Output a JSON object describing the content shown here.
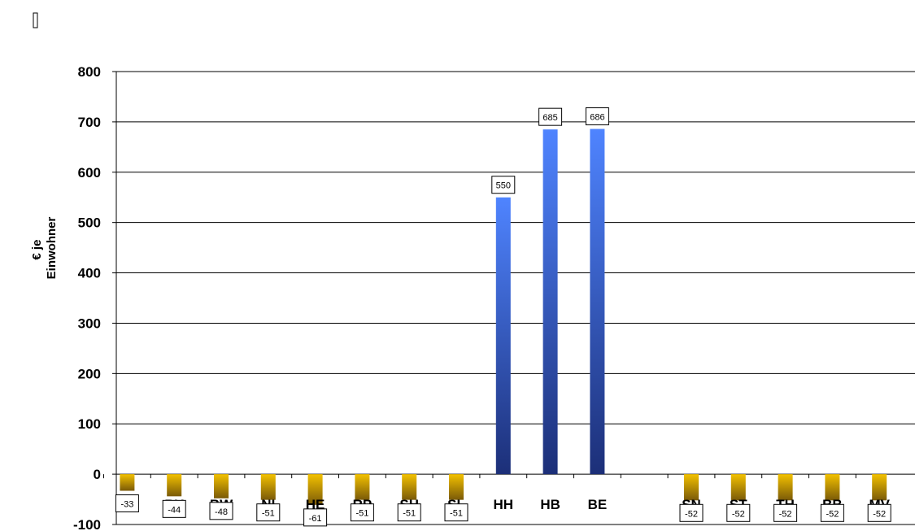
{
  "chart_data": {
    "type": "bar",
    "title": "",
    "ylabel_lines": [
      "€ je",
      "Einwohner"
    ],
    "xlabel": "",
    "ylim": [
      -100,
      800
    ],
    "yticks": [
      800,
      700,
      600,
      500,
      400,
      300,
      200,
      100,
      0,
      -100
    ],
    "grid": true,
    "legend": "none",
    "categories": [
      "NW",
      "BY",
      "BW",
      "NI",
      "HE",
      "RP",
      "SH",
      "SL",
      "HH",
      "HB",
      "BE",
      "",
      "SN",
      "ST",
      "TH",
      "BB",
      "MV"
    ],
    "values": [
      -33,
      -44,
      -48,
      -51,
      -61,
      -51,
      -51,
      -51,
      550,
      685,
      686,
      null,
      -52,
      -52,
      -52,
      -52,
      -52
    ],
    "data_labels": [
      "-33",
      "-44",
      "-48",
      "-51",
      "-61",
      "-51",
      "-51",
      "-51",
      "550",
      "685",
      "686",
      "",
      "-52",
      "-52",
      "-52",
      "-52",
      "-52"
    ],
    "colors": {
      "positive_top": "#4f84ff",
      "positive_bottom": "#1c2f78",
      "negative_top": "#f3c100",
      "negative_bottom": "#7a5a08",
      "grid": "#000000"
    }
  }
}
